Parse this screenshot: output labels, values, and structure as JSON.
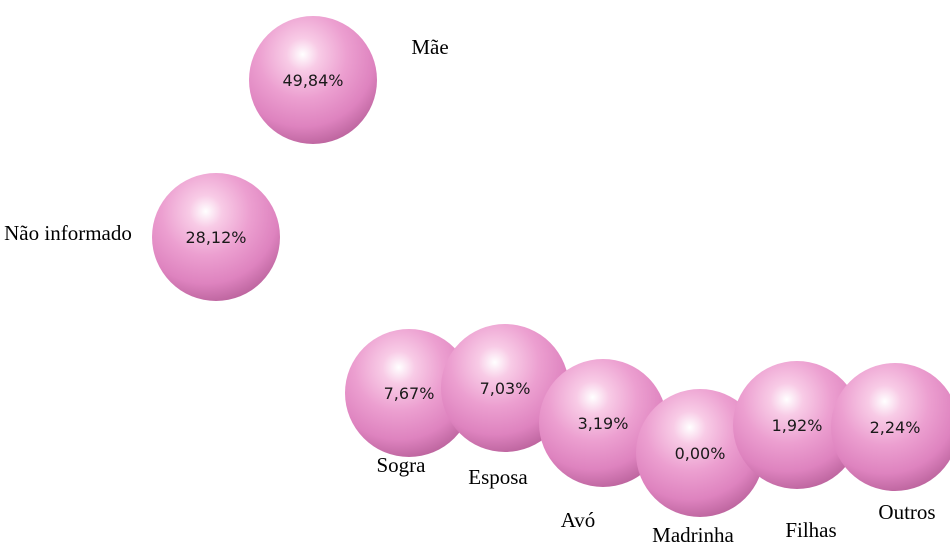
{
  "nodes": [
    {
      "label": "Mãe",
      "value": "49,84%"
    },
    {
      "label": "Não informado",
      "value": "28,12%"
    },
    {
      "label": "Sogra",
      "value": "7,67%"
    },
    {
      "label": "Esposa",
      "value": "7,03%"
    },
    {
      "label": "Avó",
      "value": "3,19%"
    },
    {
      "label": "Madrinha",
      "value": "0,00%"
    },
    {
      "label": "Filhas",
      "value": "1,92%"
    },
    {
      "label": "Outros",
      "value": "2,24%"
    }
  ]
}
